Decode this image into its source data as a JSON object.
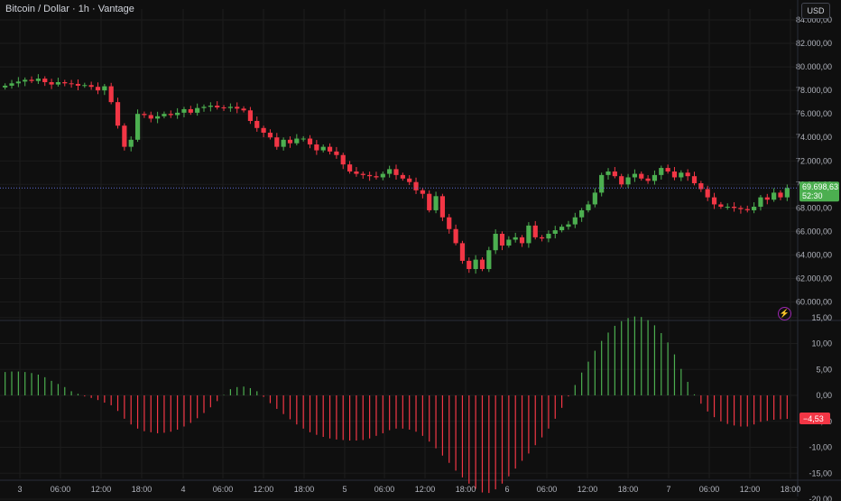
{
  "header": {
    "title": "Bitcoin / Dollar · 1h · Vantage",
    "currency_button": "USD"
  },
  "colors": {
    "up": "#26a69a",
    "up_bright": "#4caf50",
    "down": "#f23645",
    "background": "#0f0f0f",
    "grid": "#1c1c1c",
    "last_price_line": "#5b6bd4",
    "alert": "#e040fb"
  },
  "icons": {
    "alert": "lightning-icon"
  },
  "price_scale": {
    "ticks": [
      "84.000,00",
      "82.000,00",
      "80.000,00",
      "78.000,00",
      "76.000,00",
      "74.000,00",
      "72.000,00",
      "70.000,00",
      "68.000,00",
      "66.000,00",
      "64.000,00",
      "62.000,00",
      "60.000,00"
    ],
    "last_price_label": "69.698,63",
    "countdown_label": "52:30"
  },
  "indicator_scale": {
    "ticks": [
      "15,00",
      "10,00",
      "5,00",
      "0,00",
      "-5,00",
      "-10,00",
      "-15,00",
      "-20,00"
    ],
    "last_value_label": "−4,53"
  },
  "time_axis": {
    "labels": [
      "3",
      "06:00",
      "12:00",
      "18:00",
      "4",
      "06:00",
      "12:00",
      "18:00",
      "5",
      "06:00",
      "12:00",
      "18:00",
      "6",
      "06:00",
      "12:00",
      "18:00",
      "7",
      "06:00",
      "12:00",
      "18:00"
    ]
  },
  "chart_data": {
    "type": "candlestick",
    "title": "Bitcoin / Dollar · 1h · Vantage",
    "interval": "1h",
    "ylim": [
      59000,
      85000
    ],
    "last_price": 69698.63,
    "grid": true,
    "close_series": [
      78400,
      78600,
      78750,
      78900,
      78800,
      79000,
      78700,
      78500,
      78700,
      78600,
      78550,
      78400,
      78450,
      78300,
      78000,
      78350,
      77000,
      75000,
      73200,
      73800,
      76000,
      75900,
      75600,
      75800,
      76000,
      75900,
      76100,
      76400,
      76100,
      76500,
      76600,
      76700,
      76550,
      76500,
      76600,
      76450,
      76300,
      75400,
      74800,
      74400,
      74000,
      73200,
      73800,
      73500,
      73900,
      73900,
      73400,
      72900,
      73200,
      72800,
      72500,
      71700,
      71100,
      70900,
      70800,
      70700,
      70600,
      70900,
      71300,
      70800,
      70500,
      70200,
      69500,
      69200,
      67800,
      69000,
      67200,
      66200,
      65000,
      63500,
      62800,
      63600,
      62800,
      64400,
      65800,
      64800,
      65300,
      65500,
      65000,
      66500,
      65500,
      65400,
      65800,
      66100,
      66400,
      66600,
      67200,
      67800,
      68300,
      69300,
      70800,
      71100,
      70700,
      70000,
      70600,
      70900,
      70500,
      70300,
      70800,
      71400,
      71100,
      70600,
      71000,
      70700,
      70100,
      69600,
      68900,
      68300,
      68100,
      68100,
      68000,
      67900,
      67800,
      68100,
      68900,
      68700,
      69300,
      68900,
      69700
    ],
    "histogram": [
      4.5,
      4.6,
      4.6,
      4.5,
      4.3,
      4.0,
      3.5,
      2.8,
      2.2,
      1.6,
      0.8,
      0.3,
      -0.2,
      -0.5,
      -0.9,
      -1.4,
      -1.9,
      -3.0,
      -4.5,
      -5.6,
      -6.4,
      -6.9,
      -7.1,
      -7.3,
      -7.2,
      -7.0,
      -6.6,
      -6.0,
      -5.3,
      -4.4,
      -3.4,
      -2.3,
      -1.1,
      0.1,
      1.2,
      1.6,
      1.7,
      1.4,
      0.8,
      -0.3,
      -1.5,
      -2.6,
      -3.6,
      -4.6,
      -5.6,
      -6.4,
      -7.1,
      -7.6,
      -8.0,
      -8.3,
      -8.5,
      -8.6,
      -8.7,
      -8.7,
      -8.6,
      -8.3,
      -7.8,
      -7.3,
      -6.7,
      -6.4,
      -6.4,
      -6.6,
      -7.0,
      -7.8,
      -8.9,
      -10.2,
      -11.6,
      -13.0,
      -14.5,
      -15.8,
      -17.0,
      -18.0,
      -18.7,
      -18.8,
      -18.1,
      -17.0,
      -15.6,
      -14.1,
      -12.6,
      -11.2,
      -9.6,
      -8.1,
      -6.4,
      -4.5,
      -2.4,
      -0.2,
      2.0,
      4.4,
      6.5,
      8.6,
      10.5,
      12.1,
      13.4,
      14.3,
      14.9,
      15.2,
      15.1,
      14.5,
      13.5,
      12.0,
      10.2,
      7.9,
      5.1,
      2.6,
      0.2,
      -1.6,
      -3.1,
      -4.2,
      -5.0,
      -5.5,
      -5.8,
      -6.0,
      -6.0,
      -5.6,
      -5.1,
      -4.9,
      -4.7,
      -4.6,
      -4.53
    ],
    "indicator_ylim": [
      -21,
      17
    ]
  }
}
